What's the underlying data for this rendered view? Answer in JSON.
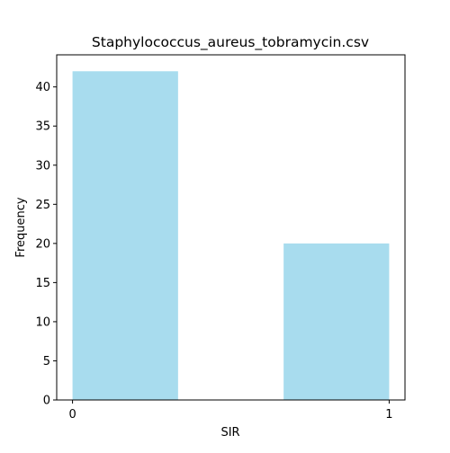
{
  "chart_data": {
    "type": "bar",
    "title": "Staphylococcus_aureus_tobramycin.csv",
    "xlabel": "SIR",
    "ylabel": "Frequency",
    "bins": [
      {
        "x0": 0.0,
        "x1": 0.3333,
        "value": 42
      },
      {
        "x0": 0.3333,
        "x1": 0.6667,
        "value": 0
      },
      {
        "x0": 0.6667,
        "x1": 1.0,
        "value": 20
      }
    ],
    "xlim": [
      -0.05,
      1.05
    ],
    "ylim": [
      0,
      44.1
    ],
    "xticks": [
      0,
      1
    ],
    "xtick_labels": [
      "0",
      "1"
    ],
    "yticks": [
      0,
      5,
      10,
      15,
      20,
      25,
      30,
      35,
      40
    ],
    "ytick_labels": [
      "0",
      "5",
      "10",
      "15",
      "20",
      "25",
      "30",
      "35",
      "40"
    ],
    "bar_color": "#a8dcee",
    "grid": false,
    "legend": "none"
  }
}
